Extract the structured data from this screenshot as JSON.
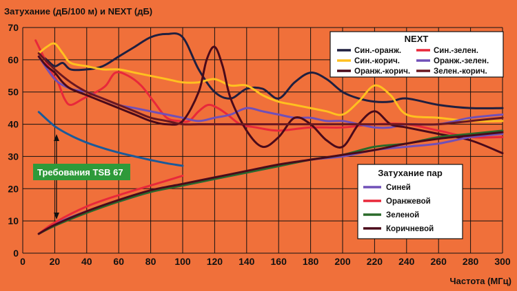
{
  "chart_data": {
    "type": "line",
    "title": "Затухание (дБ/100 м) и NEXT (дБ)",
    "xlabel": "Частота (МГц)",
    "ylabel": "",
    "xlim": [
      0,
      300
    ],
    "ylim": [
      0,
      70
    ],
    "x_ticks": [
      "0",
      "20",
      "40",
      "60",
      "80",
      "100",
      "120",
      "140",
      "160",
      "180",
      "200",
      "220",
      "240",
      "260",
      "280",
      "300"
    ],
    "y_ticks": [
      "0",
      "10",
      "20",
      "30",
      "40",
      "50",
      "60",
      "70"
    ],
    "grid": true,
    "next_legend": {
      "title": "NEXT",
      "placement": "top-right",
      "items": [
        "Син.-оранж.",
        "Син.-зелен.",
        "Син.-корич.",
        "Оранж.-зелен.",
        "Оранж.-корич.",
        "Зелен.-корич."
      ]
    },
    "attenuation_legend": {
      "title": "Затухание пар",
      "placement": "bottom-right",
      "items": [
        "Синей",
        "Оранжевой",
        "Зеленой",
        "Коричневой"
      ]
    },
    "annotation": "Требования TSB 67",
    "colors": {
      "background": "#f0703a",
      "grid": "#111111",
      "annotation_box": "#2e9a3a",
      "legend_box": "#ffffff"
    },
    "series": [
      {
        "group": "NEXT",
        "name": "Син.-оранж.",
        "color": "#1f1f3f",
        "x": [
          10,
          15,
          20,
          25,
          30,
          40,
          50,
          60,
          70,
          80,
          90,
          100,
          110,
          120,
          130,
          140,
          150,
          160,
          170,
          180,
          190,
          200,
          210,
          220,
          230,
          240,
          260,
          280,
          300
        ],
        "y": [
          62,
          60,
          58,
          59,
          57,
          57,
          58,
          61,
          64,
          67,
          68,
          67,
          57,
          50,
          48,
          51,
          51,
          48,
          53,
          56,
          54,
          50,
          48,
          47,
          47,
          48,
          46,
          45,
          45
        ]
      },
      {
        "group": "NEXT",
        "name": "Син.-зелен.",
        "color": "#e8283a",
        "x": [
          8,
          12,
          18,
          22,
          26,
          30,
          38,
          46,
          52,
          58,
          66,
          74,
          82,
          90,
          98,
          104,
          110,
          116,
          122,
          128,
          136,
          146,
          160,
          180,
          200,
          220,
          240,
          260,
          280,
          300
        ],
        "y": [
          66,
          62,
          56,
          53,
          48,
          46,
          48,
          50,
          52,
          56,
          55,
          52,
          47,
          42,
          41,
          41,
          44,
          46,
          45,
          43,
          40,
          39,
          38,
          39,
          39,
          40,
          40,
          38,
          36,
          36
        ]
      },
      {
        "group": "NEXT",
        "name": "Син.-корич.",
        "color": "#ffc020",
        "x": [
          10,
          15,
          20,
          25,
          30,
          40,
          50,
          60,
          70,
          80,
          90,
          100,
          110,
          120,
          130,
          140,
          150,
          160,
          170,
          180,
          190,
          200,
          210,
          220,
          230,
          240,
          260,
          280,
          300
        ],
        "y": [
          62,
          64,
          65,
          62,
          59,
          58,
          57,
          57,
          56,
          55,
          54,
          53,
          53,
          54,
          52,
          52,
          49,
          47,
          46,
          45,
          44,
          43,
          47,
          52,
          49,
          43,
          42,
          41,
          41
        ]
      },
      {
        "group": "NEXT",
        "name": "Оранж.-зелен.",
        "color": "#7050b8",
        "x": [
          10,
          20,
          30,
          40,
          50,
          60,
          70,
          80,
          90,
          100,
          110,
          120,
          130,
          140,
          150,
          160,
          170,
          180,
          190,
          200,
          210,
          220,
          230,
          240,
          260,
          280,
          300
        ],
        "y": [
          61,
          54,
          51,
          50,
          48,
          46,
          45,
          44,
          43,
          42,
          41,
          42,
          43,
          45,
          44,
          43,
          42,
          42,
          41,
          41,
          40,
          39,
          39,
          40,
          40,
          42,
          43
        ]
      },
      {
        "group": "NEXT",
        "name": "Оранж.-корич.",
        "color": "#4a0a1a",
        "x": [
          10,
          15,
          20,
          25,
          30,
          40,
          50,
          60,
          70,
          80,
          90,
          100,
          110,
          115,
          120,
          125,
          130,
          140,
          150,
          160,
          170,
          180,
          190,
          200,
          210,
          220,
          230,
          240,
          260,
          280,
          300
        ],
        "y": [
          61,
          58,
          56,
          53,
          51,
          49,
          47,
          45,
          43,
          41,
          40,
          41,
          50,
          60,
          64,
          58,
          48,
          38,
          33,
          36,
          42,
          40,
          35,
          33,
          40,
          44,
          40,
          39,
          37,
          35,
          31
        ]
      },
      {
        "group": "NEXT",
        "name": "Зелен.-корич.",
        "color": "#6a1820",
        "x": [
          10,
          20,
          30,
          40,
          50,
          60,
          70,
          80,
          90,
          100,
          110,
          120,
          130,
          140,
          150,
          160,
          170,
          180,
          190,
          200,
          210,
          220,
          230,
          240,
          260,
          280,
          300
        ],
        "y": [
          62,
          57,
          53,
          50,
          48,
          46,
          44,
          42,
          41,
          40,
          40,
          40,
          40,
          40,
          40,
          40,
          40,
          40,
          40,
          40,
          40,
          40,
          40,
          40,
          40,
          41,
          42
        ]
      },
      {
        "group": "TSB 67",
        "name": "",
        "color": "#1a5a9a",
        "x": [
          10,
          20,
          30,
          40,
          50,
          60,
          70,
          80,
          90,
          100
        ],
        "y": [
          43.8,
          39.4,
          36.5,
          34.3,
          32.6,
          31.2,
          30.0,
          28.9,
          27.9,
          27.1
        ]
      },
      {
        "group": "Затухание пар",
        "name": "Синей",
        "color": "#7050b8",
        "x": [
          10,
          20,
          40,
          60,
          80,
          100,
          120,
          140,
          160,
          180,
          200,
          220,
          240,
          260,
          280,
          300
        ],
        "y": [
          6,
          9,
          13,
          16,
          19,
          21,
          23,
          25,
          27,
          29,
          30,
          32,
          33,
          34,
          36,
          37
        ]
      },
      {
        "group": "Затухание пар",
        "name": "Оранжевой",
        "color": "#e8283a",
        "x": [
          10,
          20,
          40,
          60,
          80,
          100
        ],
        "y": [
          6,
          9.5,
          14.5,
          18,
          21,
          24
        ]
      },
      {
        "group": "Затухание пар",
        "name": "Зеленой",
        "color": "#2a6a2a",
        "x": [
          10,
          20,
          40,
          60,
          80,
          100,
          120,
          140,
          160,
          180,
          200,
          220,
          240,
          260,
          280,
          300
        ],
        "y": [
          6,
          8.5,
          12.5,
          16,
          19,
          21,
          23,
          25,
          27,
          29,
          30.5,
          33,
          34,
          36,
          37,
          38
        ]
      },
      {
        "group": "Затухание пар",
        "name": "Коричневой",
        "color": "#4a0a1a",
        "x": [
          10,
          20,
          40,
          60,
          80,
          100,
          120,
          140,
          160,
          180,
          200,
          220,
          240,
          260,
          280,
          300
        ],
        "y": [
          6,
          8.8,
          13,
          16.5,
          19.5,
          21.5,
          23.5,
          25.5,
          27.5,
          29,
          30.5,
          32,
          34,
          35.5,
          36.5,
          37.5
        ]
      }
    ]
  }
}
